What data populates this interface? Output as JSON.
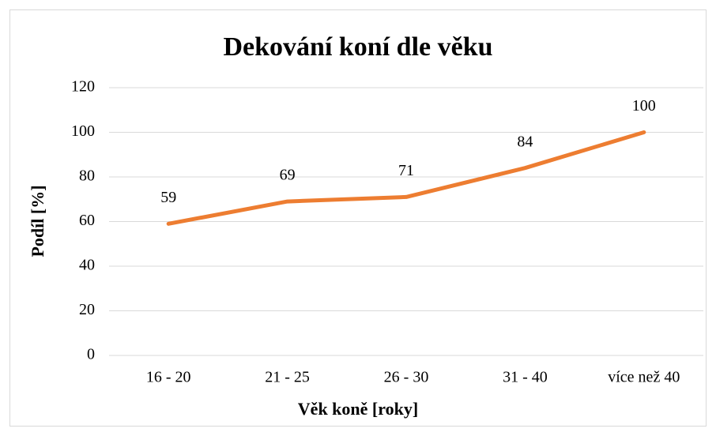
{
  "chart_data": {
    "type": "line",
    "title": "Dekování koní dle věku",
    "xlabel": "Věk koně [roky]",
    "ylabel": "Podíl [%]",
    "categories": [
      "16 - 20",
      "21 - 25",
      "26 - 30",
      "31 - 40",
      "více než 40"
    ],
    "series": [
      {
        "name": "Podíl",
        "color": "#ed7d31",
        "values": [
          59,
          69,
          71,
          84,
          100
        ]
      }
    ],
    "ylim": [
      0,
      120
    ],
    "yticks": [
      0,
      20,
      40,
      60,
      80,
      100,
      120
    ],
    "grid": true
  }
}
